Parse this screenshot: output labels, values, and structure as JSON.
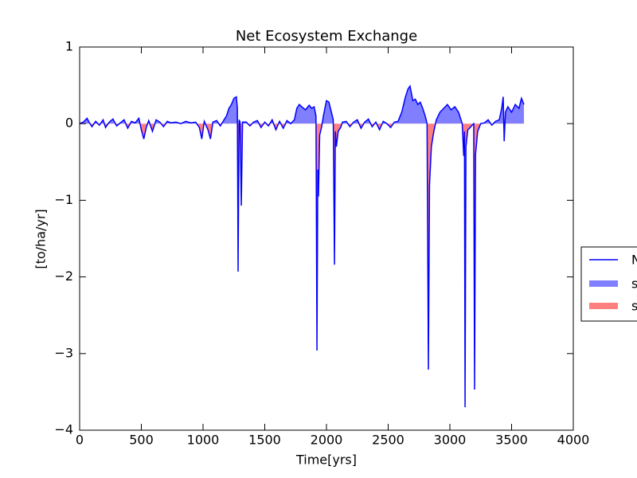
{
  "chart_data": {
    "type": "line",
    "title": "Net Ecosystem Exchange",
    "xlabel": "Time[yrs]",
    "ylabel": "[to/ha/yr]",
    "x": [
      0,
      30,
      60,
      80,
      100,
      130,
      160,
      190,
      210,
      240,
      270,
      300,
      330,
      360,
      390,
      420,
      450,
      480,
      500,
      520,
      540,
      560,
      590,
      620,
      650,
      680,
      710,
      740,
      780,
      820,
      860,
      900,
      940,
      970,
      990,
      1010,
      1040,
      1060,
      1080,
      1110,
      1140,
      1170,
      1190,
      1210,
      1230,
      1250,
      1270,
      1278,
      1284,
      1292,
      1300,
      1310,
      1320,
      1350,
      1380,
      1410,
      1440,
      1470,
      1500,
      1530,
      1560,
      1590,
      1620,
      1650,
      1680,
      1710,
      1740,
      1760,
      1780,
      1800,
      1830,
      1860,
      1880,
      1900,
      1915,
      1923,
      1930,
      1935,
      1945,
      1960,
      1975,
      1990,
      2000,
      2020,
      2040,
      2055,
      2065,
      2072,
      2080,
      2095,
      2115,
      2130,
      2160,
      2190,
      2220,
      2250,
      2280,
      2310,
      2340,
      2370,
      2400,
      2430,
      2460,
      2490,
      2520,
      2550,
      2580,
      2610,
      2640,
      2660,
      2677,
      2700,
      2720,
      2740,
      2760,
      2780,
      2800,
      2815,
      2826,
      2835,
      2850,
      2870,
      2890,
      2920,
      2950,
      2980,
      3010,
      3040,
      3070,
      3100,
      3112,
      3118,
      3123,
      3130,
      3145,
      3165,
      3180,
      3193,
      3200,
      3208,
      3225,
      3250,
      3280,
      3310,
      3340,
      3370,
      3400,
      3420,
      3432,
      3440,
      3450,
      3470,
      3500,
      3530,
      3560,
      3580,
      3600
    ],
    "series": [
      {
        "name": "N",
        "color": "#0000ff",
        "values": [
          0,
          0.02,
          0.07,
          0.01,
          -0.04,
          0.03,
          -0.02,
          0.05,
          -0.05,
          0.02,
          0.06,
          -0.03,
          0.01,
          0.05,
          -0.06,
          0.03,
          0.01,
          0.07,
          -0.08,
          -0.2,
          -0.05,
          0.04,
          -0.1,
          0.05,
          0.02,
          -0.04,
          0.03,
          0.01,
          0.02,
          0,
          0.03,
          0.01,
          0.02,
          -0.05,
          -0.2,
          0.03,
          -0.08,
          -0.2,
          0.02,
          0.04,
          -0.03,
          0.05,
          0.1,
          0.2,
          0.25,
          0.33,
          0.35,
          0.2,
          -1.93,
          0.05,
          0.02,
          -1.07,
          0.02,
          0.02,
          -0.03,
          0.02,
          0.04,
          -0.05,
          0.02,
          -0.03,
          0.05,
          -0.08,
          0.03,
          -0.06,
          0.04,
          0,
          0.05,
          0.2,
          0.25,
          0.22,
          0.18,
          0.24,
          0.2,
          0.22,
          0.1,
          -2.96,
          -0.6,
          -0.95,
          -0.15,
          -0.05,
          0.1,
          0.22,
          0.3,
          0.28,
          0.15,
          0.05,
          -1.84,
          -0.1,
          -0.3,
          -0.1,
          -0.05,
          0.02,
          0.03,
          -0.04,
          0.02,
          0.05,
          -0.06,
          0.02,
          0.06,
          -0.04,
          0.02,
          -0.08,
          0.03,
          0,
          -0.05,
          0.02,
          0.03,
          0.15,
          0.35,
          0.45,
          0.49,
          0.3,
          0.32,
          0.25,
          0.28,
          0.2,
          0.1,
          0,
          -3.21,
          -0.8,
          -0.3,
          -0.1,
          0.05,
          0.15,
          0.2,
          0.25,
          0.18,
          0.22,
          0.15,
          0,
          -0.42,
          -0.1,
          -3.7,
          -0.3,
          -0.08,
          -0.05,
          -0.02,
          0,
          -3.47,
          -0.4,
          -0.1,
          0,
          0.01,
          0.05,
          -0.02,
          0.03,
          0.05,
          0.2,
          0.35,
          -0.23,
          0.15,
          0.22,
          0.15,
          0.25,
          0.2,
          0.33,
          0.25
        ]
      }
    ],
    "fills": [
      {
        "name": "s",
        "color": "#0000ff",
        "where": "above"
      },
      {
        "name": "s",
        "color": "#ff0000",
        "where": "below"
      }
    ],
    "xlim": [
      0,
      4000
    ],
    "xticks": [
      0,
      500,
      1000,
      1500,
      2000,
      2500,
      3000,
      3500,
      4000
    ],
    "ylim": [
      -4,
      1
    ],
    "yticks": [
      {
        "value": -4,
        "label": "−4"
      },
      {
        "value": -3,
        "label": "−3"
      },
      {
        "value": -2,
        "label": "−2"
      },
      {
        "value": -1,
        "label": "−1"
      },
      0,
      1
    ]
  }
}
